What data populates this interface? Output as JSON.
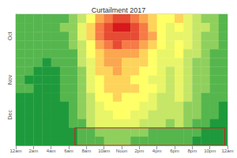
{
  "chart_data": {
    "type": "heatmap",
    "title": "Curtailment 2017",
    "xlim": [
      0,
      24
    ],
    "xticks": [
      {
        "value": 0,
        "label": "12am"
      },
      {
        "value": 2,
        "label": "2am"
      },
      {
        "value": 4,
        "label": "4am"
      },
      {
        "value": 6,
        "label": "6am"
      },
      {
        "value": 8,
        "label": "8am"
      },
      {
        "value": 10,
        "label": "10am"
      },
      {
        "value": 12,
        "label": "Noon"
      },
      {
        "value": 14,
        "label": "2pm"
      },
      {
        "value": 16,
        "label": "4pm"
      },
      {
        "value": 18,
        "label": "6pm"
      },
      {
        "value": 20,
        "label": "8pm"
      },
      {
        "value": 22,
        "label": "10pm"
      },
      {
        "value": 24,
        "label": "12am"
      }
    ],
    "hours": [
      0,
      1,
      2,
      3,
      4,
      5,
      6,
      7,
      8,
      9,
      10,
      11,
      12,
      13,
      14,
      15,
      16,
      17,
      18,
      19,
      20,
      21,
      22,
      23
    ],
    "categories": [
      null,
      null,
      "Oct",
      null,
      null,
      null,
      null,
      "Nov",
      null,
      null,
      null,
      "Dec",
      null,
      null,
      null
    ],
    "color_range": [
      0,
      10
    ],
    "cells": [
      [
        1,
        1,
        1,
        1,
        1,
        1,
        2,
        3,
        5,
        7,
        8,
        9,
        9,
        8,
        7,
        6,
        5,
        5,
        6,
        4,
        3,
        2,
        2,
        1
      ],
      [
        1,
        1,
        1,
        1,
        1,
        2,
        2,
        4,
        6,
        8,
        9,
        10,
        10,
        9,
        8,
        6,
        5,
        4,
        5,
        4,
        3,
        3,
        2,
        1
      ],
      [
        1,
        1,
        1,
        1,
        1,
        1,
        2,
        4,
        6,
        8,
        9,
        9,
        9,
        9,
        8,
        7,
        5,
        4,
        4,
        4,
        3,
        2,
        2,
        1
      ],
      [
        1,
        1,
        1,
        1,
        1,
        1,
        2,
        3,
        5,
        7,
        8,
        9,
        8,
        8,
        7,
        6,
        5,
        4,
        5,
        4,
        3,
        2,
        2,
        1
      ],
      [
        1,
        1,
        1,
        1,
        1,
        1,
        1,
        3,
        5,
        6,
        7,
        7,
        7,
        7,
        6,
        5,
        4,
        4,
        5,
        3,
        3,
        2,
        1,
        1
      ],
      [
        1,
        1,
        1,
        0,
        1,
        1,
        1,
        3,
        4,
        6,
        7,
        7,
        6,
        6,
        6,
        5,
        4,
        4,
        4,
        3,
        2,
        2,
        1,
        1
      ],
      [
        1,
        1,
        0,
        0,
        0,
        1,
        1,
        2,
        4,
        6,
        6,
        7,
        6,
        6,
        5,
        5,
        4,
        3,
        4,
        3,
        2,
        2,
        1,
        1
      ],
      [
        1,
        0,
        0,
        0,
        0,
        1,
        1,
        2,
        4,
        5,
        6,
        6,
        6,
        5,
        5,
        4,
        4,
        3,
        4,
        3,
        2,
        2,
        1,
        1
      ],
      [
        1,
        1,
        0,
        0,
        0,
        1,
        1,
        2,
        4,
        5,
        6,
        6,
        6,
        6,
        5,
        5,
        4,
        3,
        4,
        3,
        2,
        2,
        1,
        1
      ],
      [
        0,
        0,
        0,
        0,
        0,
        1,
        1,
        2,
        3,
        5,
        5,
        6,
        5,
        5,
        5,
        4,
        3,
        3,
        4,
        3,
        2,
        1,
        1,
        1
      ],
      [
        0,
        0,
        0,
        0,
        0,
        0,
        1,
        2,
        3,
        4,
        5,
        5,
        5,
        5,
        4,
        4,
        3,
        3,
        3,
        2,
        2,
        1,
        1,
        0
      ],
      [
        0,
        0,
        0,
        0,
        0,
        0,
        1,
        2,
        3,
        4,
        4,
        5,
        5,
        4,
        4,
        3,
        3,
        3,
        3,
        2,
        2,
        1,
        1,
        0
      ],
      [
        0,
        0,
        0,
        0,
        0,
        0,
        1,
        1,
        3,
        4,
        4,
        4,
        4,
        4,
        3,
        3,
        3,
        2,
        3,
        2,
        1,
        1,
        0,
        0
      ],
      [
        0,
        0,
        0,
        0,
        0,
        0,
        0,
        1,
        1,
        2,
        2,
        2,
        2,
        2,
        2,
        1,
        1,
        1,
        1,
        1,
        1,
        0,
        0,
        0
      ],
      [
        0,
        0,
        0,
        0,
        0,
        0,
        0,
        1,
        1,
        1,
        2,
        2,
        2,
        1,
        1,
        1,
        1,
        1,
        1,
        1,
        0,
        0,
        0,
        0
      ]
    ],
    "highlight": {
      "x": [
        6.7,
        23.7
      ],
      "rows": [
        13,
        14
      ]
    }
  }
}
